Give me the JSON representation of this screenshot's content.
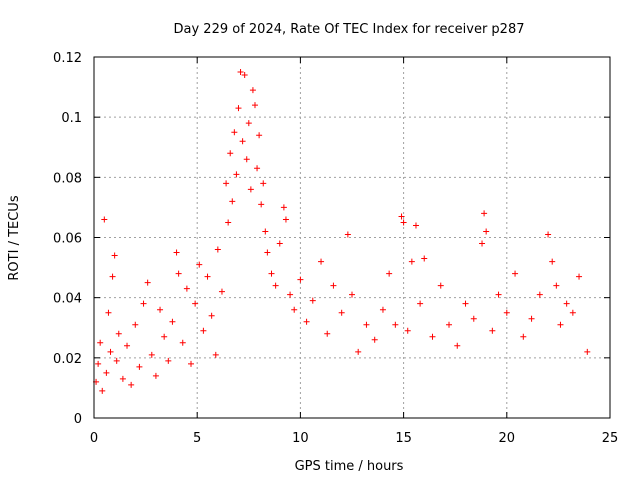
{
  "chart_data": {
    "type": "scatter",
    "title": "Day 229 of 2024, Rate Of TEC Index for receiver p287",
    "xlabel": "GPS time / hours",
    "ylabel": "ROTI / TECUs",
    "xlim": [
      0,
      25
    ],
    "ylim": [
      0,
      0.12
    ],
    "xticks": [
      0,
      5,
      10,
      15,
      20,
      25
    ],
    "xtick_labels": [
      "0",
      "5",
      "10",
      "15",
      "20",
      "25"
    ],
    "yticks": [
      0,
      0.02,
      0.04,
      0.06,
      0.08,
      0.1,
      0.12
    ],
    "ytick_labels": [
      "0",
      "0.02",
      "0.04",
      "0.06",
      "0.08",
      "0.1",
      "0.12"
    ],
    "grid": true,
    "marker": "+",
    "color": "#ff0000",
    "series": [
      {
        "name": "ROTI",
        "points": [
          [
            0.1,
            0.012
          ],
          [
            0.2,
            0.018
          ],
          [
            0.3,
            0.025
          ],
          [
            0.4,
            0.009
          ],
          [
            0.5,
            0.066
          ],
          [
            0.6,
            0.015
          ],
          [
            0.7,
            0.035
          ],
          [
            0.8,
            0.022
          ],
          [
            0.9,
            0.047
          ],
          [
            1.0,
            0.054
          ],
          [
            1.1,
            0.019
          ],
          [
            1.2,
            0.028
          ],
          [
            1.4,
            0.013
          ],
          [
            1.6,
            0.024
          ],
          [
            1.8,
            0.011
          ],
          [
            2.0,
            0.031
          ],
          [
            2.2,
            0.017
          ],
          [
            2.4,
            0.038
          ],
          [
            2.6,
            0.045
          ],
          [
            2.8,
            0.021
          ],
          [
            3.0,
            0.014
          ],
          [
            3.2,
            0.036
          ],
          [
            3.4,
            0.027
          ],
          [
            3.6,
            0.019
          ],
          [
            3.8,
            0.032
          ],
          [
            4.0,
            0.055
          ],
          [
            4.1,
            0.048
          ],
          [
            4.3,
            0.025
          ],
          [
            4.5,
            0.043
          ],
          [
            4.7,
            0.018
          ],
          [
            4.9,
            0.038
          ],
          [
            5.1,
            0.051
          ],
          [
            5.3,
            0.029
          ],
          [
            5.5,
            0.047
          ],
          [
            5.7,
            0.034
          ],
          [
            5.9,
            0.021
          ],
          [
            6.0,
            0.056
          ],
          [
            6.2,
            0.042
          ],
          [
            6.4,
            0.078
          ],
          [
            6.5,
            0.065
          ],
          [
            6.6,
            0.088
          ],
          [
            6.7,
            0.072
          ],
          [
            6.8,
            0.095
          ],
          [
            6.9,
            0.081
          ],
          [
            7.0,
            0.103
          ],
          [
            7.1,
            0.115
          ],
          [
            7.2,
            0.092
          ],
          [
            7.3,
            0.114
          ],
          [
            7.4,
            0.086
          ],
          [
            7.5,
            0.098
          ],
          [
            7.6,
            0.076
          ],
          [
            7.7,
            0.109
          ],
          [
            7.8,
            0.104
          ],
          [
            7.9,
            0.083
          ],
          [
            8.0,
            0.094
          ],
          [
            8.1,
            0.071
          ],
          [
            8.2,
            0.078
          ],
          [
            8.3,
            0.062
          ],
          [
            8.4,
            0.055
          ],
          [
            8.6,
            0.048
          ],
          [
            8.8,
            0.044
          ],
          [
            9.0,
            0.058
          ],
          [
            9.2,
            0.07
          ],
          [
            9.3,
            0.066
          ],
          [
            9.5,
            0.041
          ],
          [
            9.7,
            0.036
          ],
          [
            10.0,
            0.046
          ],
          [
            10.3,
            0.032
          ],
          [
            10.6,
            0.039
          ],
          [
            11.0,
            0.052
          ],
          [
            11.3,
            0.028
          ],
          [
            11.6,
            0.044
          ],
          [
            12.0,
            0.035
          ],
          [
            12.3,
            0.061
          ],
          [
            12.5,
            0.041
          ],
          [
            12.8,
            0.022
          ],
          [
            13.2,
            0.031
          ],
          [
            13.6,
            0.026
          ],
          [
            14.0,
            0.036
          ],
          [
            14.3,
            0.048
          ],
          [
            14.6,
            0.031
          ],
          [
            14.9,
            0.067
          ],
          [
            15.0,
            0.065
          ],
          [
            15.2,
            0.029
          ],
          [
            15.4,
            0.052
          ],
          [
            15.6,
            0.064
          ],
          [
            15.8,
            0.038
          ],
          [
            16.0,
            0.053
          ],
          [
            16.4,
            0.027
          ],
          [
            16.8,
            0.044
          ],
          [
            17.2,
            0.031
          ],
          [
            17.6,
            0.024
          ],
          [
            18.0,
            0.038
          ],
          [
            18.4,
            0.033
          ],
          [
            18.8,
            0.058
          ],
          [
            18.9,
            0.068
          ],
          [
            19.0,
            0.062
          ],
          [
            19.3,
            0.029
          ],
          [
            19.6,
            0.041
          ],
          [
            20.0,
            0.035
          ],
          [
            20.4,
            0.048
          ],
          [
            20.8,
            0.027
          ],
          [
            21.2,
            0.033
          ],
          [
            21.6,
            0.041
          ],
          [
            22.0,
            0.061
          ],
          [
            22.2,
            0.052
          ],
          [
            22.4,
            0.044
          ],
          [
            22.6,
            0.031
          ],
          [
            22.9,
            0.038
          ],
          [
            23.2,
            0.035
          ],
          [
            23.5,
            0.047
          ],
          [
            23.9,
            0.022
          ]
        ]
      }
    ]
  }
}
